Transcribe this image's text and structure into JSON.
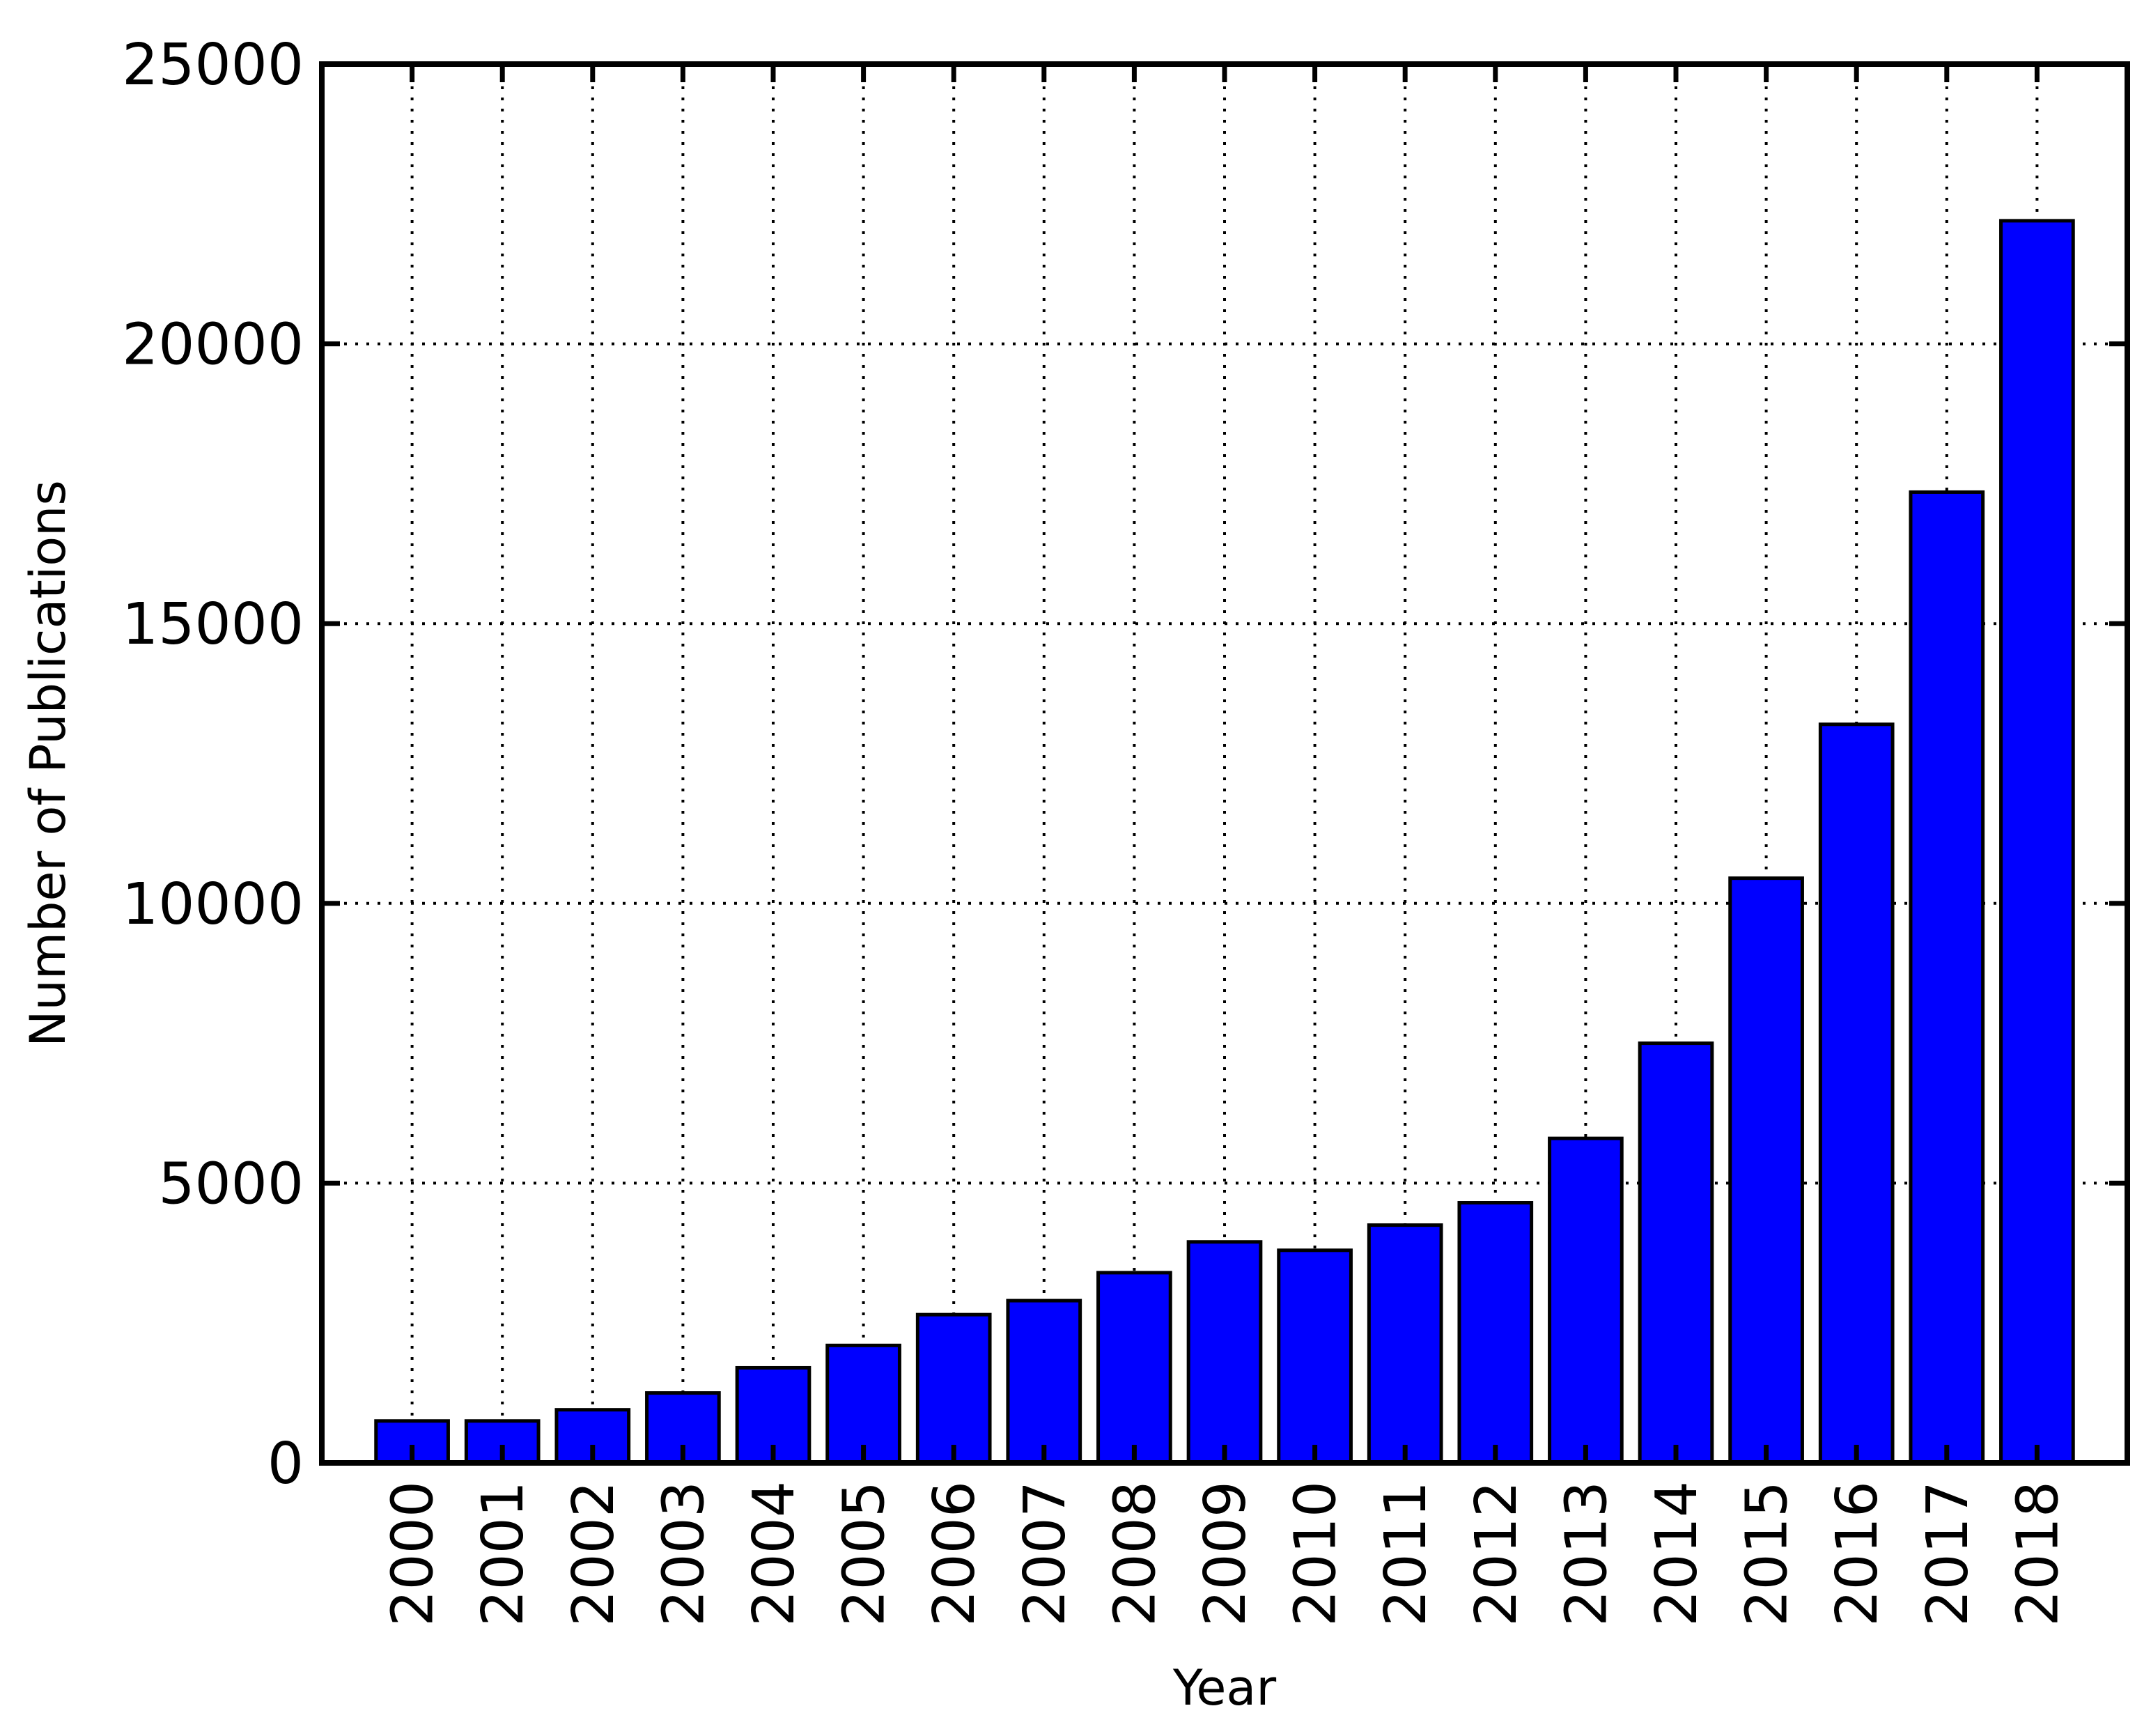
{
  "chart_data": {
    "type": "bar",
    "title": "",
    "xlabel": "Year",
    "ylabel": "Number of Publications",
    "categories": [
      "2000",
      "2001",
      "2002",
      "2003",
      "2004",
      "2005",
      "2006",
      "2007",
      "2008",
      "2009",
      "2010",
      "2011",
      "2012",
      "2013",
      "2014",
      "2015",
      "2016",
      "2017",
      "2018"
    ],
    "values": [
      750,
      750,
      950,
      1250,
      1700,
      2100,
      2650,
      2900,
      3400,
      3950,
      3800,
      4250,
      4650,
      5800,
      7500,
      10450,
      13200,
      17350,
      22200
    ],
    "ylim": [
      0,
      25000
    ],
    "yticks": [
      "0",
      "5000",
      "10000",
      "15000",
      "20000",
      "25000"
    ],
    "grid": true,
    "x_label_rotation": "vertical",
    "colors": {
      "bar_fill": "#0000ff",
      "bar_edge": "#000000",
      "frame": "#000000",
      "grid": "#000000"
    }
  }
}
